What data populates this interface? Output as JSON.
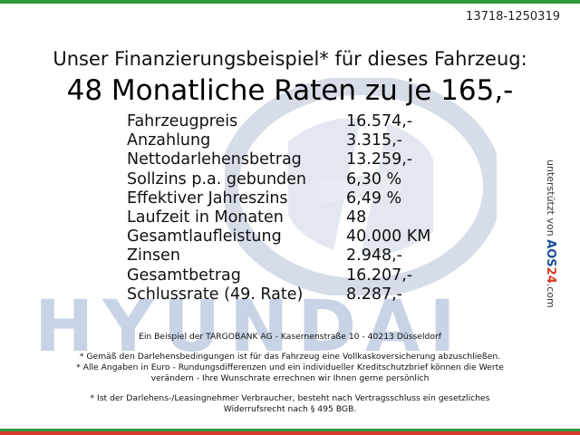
{
  "listing_id": "13718-1250319",
  "headline": {
    "sub": "Unser Finanzierungsbeispiel* für dieses Fahrzeug:",
    "main": "48 Monatliche Raten zu je 165,-"
  },
  "finance_rows": [
    {
      "label": "Fahrzeugpreis",
      "value": "16.574,-"
    },
    {
      "label": "Anzahlung",
      "value": "3.315,-"
    },
    {
      "label": "Nettodarlehensbetrag",
      "value": "13.259,-"
    },
    {
      "label": "Sollzins p.a. gebunden",
      "value": "6,30 %"
    },
    {
      "label": "Effektiver Jahreszins",
      "value": "6,49 %"
    },
    {
      "label": "Laufzeit in Monaten",
      "value": "48"
    },
    {
      "label": "Gesamtlaufleistung",
      "value": "40.000 KM"
    },
    {
      "label": "Zinsen",
      "value": "2.948,-"
    },
    {
      "label": "Gesamtbetrag",
      "value": "16.207,-"
    },
    {
      "label": "Schlussrate (49. Rate)",
      "value": "8.287,-"
    }
  ],
  "side_credit": {
    "prefix": "unterstützt von",
    "brand_a": "AOS",
    "brand_num": "24",
    "brand_b": ".com"
  },
  "watermark_brand": "HYUNDAI",
  "footnotes": {
    "lender": "Ein Beispiel der TARGOBANK AG - Kasernenstraße 10 - 40213 Düsseldorf",
    "insurance": "* Gemäß den Darlehensbedingungen ist für das Fahrzeug eine Vollkaskoversicherung abzuschließen.",
    "amounts_1": "* Alle Angaben in Euro - Rundungsdifferenzen und ein individueller Kreditschutzbrief können die Werte",
    "amounts_2": "verändern - Ihre Wunschrate errechnen wir Ihnen gerne persönlich",
    "withdrawal_1": "* Ist der Darlehens-/Leasingnehmer Verbraucher, besteht nach Vertragsschluss ein gesetzliches",
    "withdrawal_2": "Widerrufsrecht nach § 495 BGB."
  },
  "colors": {
    "top_stripe": "#2e9a3a",
    "bottom_stripe": "#d63a2a",
    "watermark": "#c8d3e6"
  }
}
